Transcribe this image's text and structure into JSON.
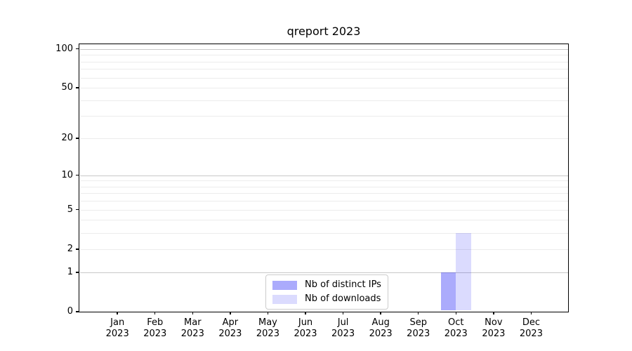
{
  "chart_data": {
    "type": "bar",
    "title": "qreport 2023",
    "categories": [
      "Jan",
      "Feb",
      "Mar",
      "Apr",
      "May",
      "Jun",
      "Jul",
      "Aug",
      "Sep",
      "Oct",
      "Nov",
      "Dec"
    ],
    "year_label": "2023",
    "series": [
      {
        "name": "Nb of distinct IPs",
        "color": "rgba(15,15,245,0.35)",
        "values": [
          0,
          0,
          0,
          0,
          0,
          0,
          0,
          0,
          0,
          1,
          0,
          0
        ]
      },
      {
        "name": "Nb of downloads",
        "color": "rgba(15,15,245,0.15)",
        "values": [
          0,
          0,
          0,
          0,
          0,
          0,
          0,
          0,
          0,
          3,
          0,
          0
        ]
      }
    ],
    "yscale": "log1p",
    "ylim": [
      0,
      110
    ],
    "y_ticks": [
      0,
      1,
      2,
      5,
      10,
      20,
      50,
      100
    ],
    "y_gridlines_major": [
      1,
      10,
      100
    ],
    "y_gridlines_minor": [
      2,
      3,
      4,
      5,
      6,
      7,
      8,
      9,
      20,
      30,
      40,
      50,
      60,
      70,
      80,
      90
    ],
    "xlabel": "",
    "ylabel": "",
    "grid": true,
    "legend_position": "lower center",
    "bar_width_fraction": 0.8
  },
  "colors": {
    "grid_major": "#c8c8c8",
    "grid_minor": "#ececec",
    "spine": "#000000",
    "legend_border": "#cccccc",
    "background": "#ffffff",
    "text": "#000000"
  }
}
